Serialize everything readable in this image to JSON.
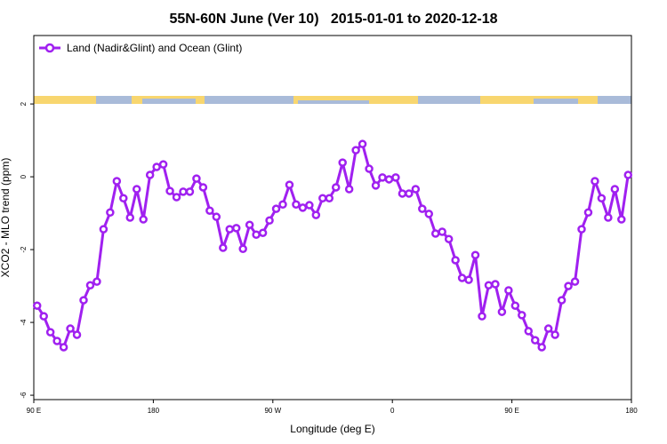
{
  "chart_data": {
    "type": "line",
    "title": "55N-60N June (Ver 10)   2015-01-01 to 2020-12-18",
    "xlabel": "Longitude (deg E)",
    "ylabel": "XCO2 - MLO trend (ppm)",
    "xlim": [
      90,
      540
    ],
    "ylim": [
      -6.12,
      3.88
    ],
    "xticks": [
      {
        "value": 90,
        "label": "90 E"
      },
      {
        "value": 180,
        "label": "180"
      },
      {
        "value": 270,
        "label": "90 W"
      },
      {
        "value": 360,
        "label": "0"
      },
      {
        "value": 450,
        "label": "90 E"
      },
      {
        "value": 540,
        "label": "180"
      }
    ],
    "yticks": [
      2,
      0,
      -2,
      -4,
      -6
    ],
    "legend": "top-left",
    "x": [
      92.5,
      97.5,
      102.5,
      107.5,
      112.5,
      117.5,
      122.5,
      127.5,
      132.5,
      137.5,
      142.5,
      147.5,
      152.5,
      157.5,
      162.5,
      167.5,
      172.5,
      177.5,
      182.5,
      187.5,
      192.5,
      197.5,
      202.5,
      207.5,
      212.5,
      217.5,
      222.5,
      227.5,
      232.5,
      237.5,
      242.5,
      247.5,
      252.5,
      257.5,
      262.5,
      267.5,
      272.5,
      277.5,
      282.5,
      287.5,
      292.5,
      297.5,
      302.5,
      307.5,
      312.5,
      317.5,
      322.5,
      327.5,
      332.5,
      337.5,
      342.5,
      347.5,
      352.5,
      357.5,
      362.5,
      367.5,
      372.5,
      377.5,
      382.5,
      387.5,
      392.5,
      397.5,
      402.5,
      407.5,
      412.5,
      417.5,
      422.5,
      427.5,
      432.5,
      437.5,
      442.5,
      447.5,
      452.5,
      457.5,
      462.5,
      467.5,
      472.5,
      477.5,
      482.5,
      487.5,
      492.5,
      497.5,
      502.5,
      507.5,
      512.5,
      517.5,
      522.5,
      527.5,
      532.5,
      537.5
    ],
    "series": [
      {
        "name": "Land (Nadir&Glint) and Ocean (Glint)",
        "color": "#a020f0",
        "values": [
          -3.54,
          -3.83,
          -4.27,
          -4.51,
          -4.68,
          -4.17,
          -4.34,
          -3.39,
          -2.98,
          -2.88,
          -1.44,
          -0.98,
          -0.12,
          -0.59,
          -1.12,
          -0.34,
          -1.17,
          0.05,
          0.27,
          0.34,
          -0.39,
          -0.56,
          -0.41,
          -0.41,
          -0.05,
          -0.29,
          -0.93,
          -1.1,
          -1.95,
          -1.44,
          -1.41,
          -1.98,
          -1.32,
          -1.59,
          -1.54,
          -1.2,
          -0.88,
          -0.76,
          -0.22,
          -0.76,
          -0.85,
          -0.78,
          -1.05,
          -0.59,
          -0.59,
          -0.29,
          0.39,
          -0.34,
          0.73,
          0.9,
          0.22,
          -0.24,
          -0.02,
          -0.07,
          -0.02,
          -0.46,
          -0.46,
          -0.34,
          -0.88,
          -1.02,
          -1.56,
          -1.51,
          -1.71,
          -2.29,
          -2.78,
          -2.83,
          -2.15,
          -3.83,
          -2.98,
          -2.95,
          -3.71,
          -3.12,
          -3.54,
          -3.8,
          -4.24,
          -4.49,
          -4.68,
          -4.17,
          -4.34,
          -3.39,
          -3.0,
          -2.88,
          -1.44,
          -0.98,
          -0.12,
          -0.59,
          -1.12,
          -0.34,
          -1.17,
          0.05
        ]
      }
    ]
  }
}
